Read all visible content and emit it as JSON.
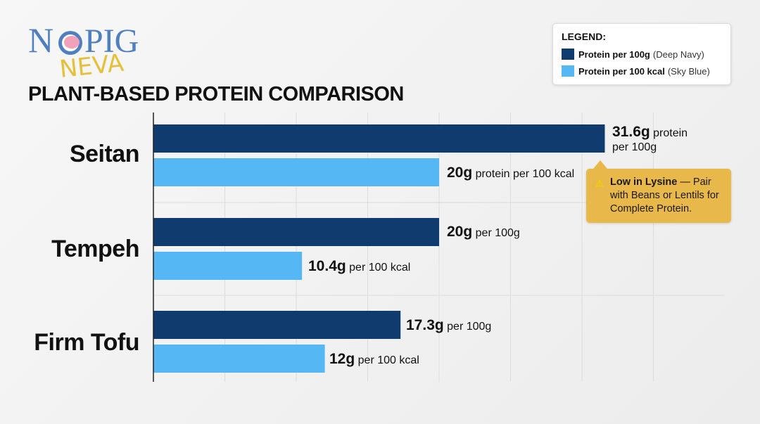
{
  "logo": {
    "line1": "NO PIG",
    "line2": "NEVA"
  },
  "title": "PLANT-BASED PROTEIN COMPARISON",
  "legend": {
    "title": "LEGEND:",
    "items": [
      {
        "label": "Protein per 100g",
        "note": "(Deep Navy)",
        "color": "#0f3b6e"
      },
      {
        "label": "Protein per 100 kcal",
        "note": "(Sky Blue)",
        "color": "#55b8f5"
      }
    ]
  },
  "chart_data": {
    "type": "bar",
    "orientation": "horizontal",
    "title": "PLANT-BASED PROTEIN COMPARISON",
    "categories": [
      "Seitan",
      "Tempeh",
      "Firm Tofu"
    ],
    "series": [
      {
        "name": "Protein per 100g",
        "values": [
          31.6,
          20,
          17.3
        ],
        "color": "#0f3b6e"
      },
      {
        "name": "Protein per 100 kcal",
        "values": [
          20,
          10.4,
          12
        ],
        "color": "#55b8f5"
      }
    ],
    "xlim": [
      0,
      40
    ],
    "grid": true,
    "legend_position": "top-right",
    "data_labels": [
      [
        {
          "value": "31.6g",
          "text": "protein",
          "text2": "per 100g"
        },
        {
          "value": "20g",
          "text": "protein per 100 kcal"
        }
      ],
      [
        {
          "value": "20g",
          "text": "per 100g"
        },
        {
          "value": "10.4g",
          "text": "per 100 kcal"
        }
      ],
      [
        {
          "value": "17.3g",
          "text": "per 100g"
        },
        {
          "value": "12g",
          "text": "per 100 kcal"
        }
      ]
    ],
    "annotation": {
      "icon": "warning-icon",
      "bold": "Low in Lysine",
      "text": " — Pair with Beans or Lentils for Complete Protein."
    }
  }
}
